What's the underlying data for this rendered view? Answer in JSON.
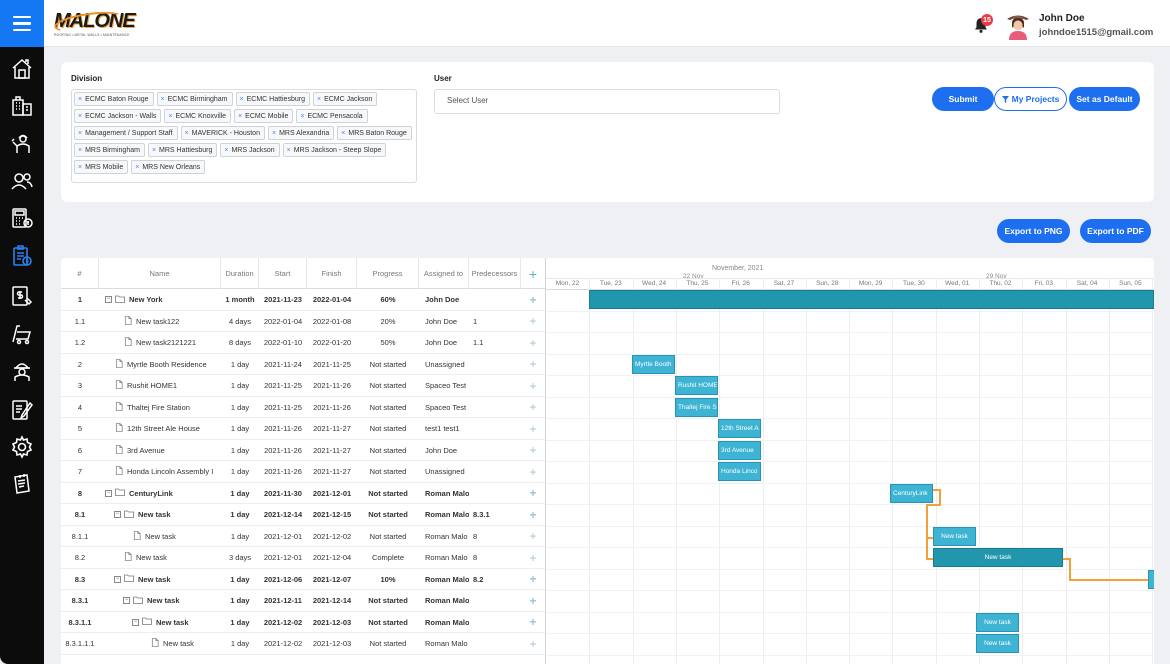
{
  "header": {
    "logo_text": "MALONE",
    "logo_subtitle": "ROOFING • METAL WALLS • MAINTENANCE",
    "notification_count": "15",
    "user_name": "John Doe",
    "user_email": "johndoe1515@gmail.com"
  },
  "sidebar": {
    "items": [
      {
        "name": "home-icon"
      },
      {
        "name": "building-icon"
      },
      {
        "name": "worker-icon"
      },
      {
        "name": "users-icon"
      },
      {
        "name": "calculator-icon"
      },
      {
        "name": "project-schedule-icon"
      },
      {
        "name": "invoice-icon"
      },
      {
        "name": "cart-icon"
      },
      {
        "name": "foreman-icon"
      },
      {
        "name": "estimate-icon"
      },
      {
        "name": "settings-icon"
      },
      {
        "name": "notes-icon"
      }
    ]
  },
  "filters": {
    "division_label": "Division",
    "user_label": "User",
    "user_placeholder": "Select User",
    "divisions": [
      "ECMC Baton Rouge",
      "ECMC Birmingham",
      "ECMC Hattiesburg",
      "ECMC Jackson",
      "ECMC Jackson - Walls",
      "ECMC Knoxville",
      "ECMC Mobile",
      "ECMC Pensacola",
      "Management / Support Staff",
      "MAVERICK - Houston",
      "MRS Alexandria",
      "MRS Baton Rouge",
      "MRS Birmingham",
      "MRS Hattiesburg",
      "MRS Jackson",
      "MRS Jackson - Steep Slope",
      "MRS Mobile",
      "MRS New Orleans"
    ],
    "chip_remove": "×",
    "submit_label": "Submit",
    "my_projects_label": "My Projects",
    "set_default_label": "Set as Default"
  },
  "export": {
    "png_label": "Export to PNG",
    "pdf_label": "Export to PDF"
  },
  "gantt": {
    "columns": {
      "id": "#",
      "name": "Name",
      "duration": "Duration",
      "start": "Start",
      "finish": "Finish",
      "progress": "Progress",
      "assigned": "Assigned to",
      "predecessors": "Predecessors",
      "add": "+"
    },
    "rows": [
      {
        "id": "1",
        "name": "New York",
        "duration": "1 month",
        "start": "2021-11-23",
        "finish": "2022-01-04",
        "progress": "60%",
        "assigned": "John Doe",
        "pred": "",
        "bold": true,
        "folder": true,
        "level": 0
      },
      {
        "id": "1.1",
        "name": "New task122",
        "duration": "4 days",
        "start": "2022-01-04",
        "finish": "2022-01-08",
        "progress": "20%",
        "assigned": "John Doe",
        "pred": "1",
        "bold": false,
        "folder": false,
        "level": 1
      },
      {
        "id": "1.2",
        "name": "New task2121221",
        "duration": "8 days",
        "start": "2022-01-10",
        "finish": "2022-01-20",
        "progress": "50%",
        "assigned": "John Doe",
        "pred": "1.1",
        "bold": false,
        "folder": false,
        "level": 1
      },
      {
        "id": "2",
        "name": "Myrtle Booth Residence",
        "duration": "1 day",
        "start": "2021-11-24",
        "finish": "2021-11-25",
        "progress": "Not started",
        "assigned": "Unassigned",
        "pred": "",
        "bold": false,
        "folder": false,
        "level": 0
      },
      {
        "id": "3",
        "name": "Rushit HOME1",
        "duration": "1 day",
        "start": "2021-11-25",
        "finish": "2021-11-26",
        "progress": "Not started",
        "assigned": "Spaceo Test",
        "pred": "",
        "bold": false,
        "folder": false,
        "level": 0
      },
      {
        "id": "4",
        "name": "Thaltej Fire Station",
        "duration": "1 day",
        "start": "2021-11-25",
        "finish": "2021-11-26",
        "progress": "Not started",
        "assigned": "Spaceo Test",
        "pred": "",
        "bold": false,
        "folder": false,
        "level": 0
      },
      {
        "id": "5",
        "name": "12th Street Ale House",
        "duration": "1 day",
        "start": "2021-11-26",
        "finish": "2021-11-27",
        "progress": "Not started",
        "assigned": "test1 test1",
        "pred": "",
        "bold": false,
        "folder": false,
        "level": 0
      },
      {
        "id": "6",
        "name": "3rd Avenue",
        "duration": "1 day",
        "start": "2021-11-26",
        "finish": "2021-11-27",
        "progress": "Not started",
        "assigned": "John Doe",
        "pred": "",
        "bold": false,
        "folder": false,
        "level": 0
      },
      {
        "id": "7",
        "name": "Honda Lincoln Assembly I",
        "duration": "1 day",
        "start": "2021-11-26",
        "finish": "2021-11-27",
        "progress": "Not started",
        "assigned": "Unassigned",
        "pred": "",
        "bold": false,
        "folder": false,
        "level": 0
      },
      {
        "id": "8",
        "name": "CenturyLink",
        "duration": "1 day",
        "start": "2021-11-30",
        "finish": "2021-12-01",
        "progress": "Not started",
        "assigned": "Roman Malo",
        "pred": "",
        "bold": true,
        "folder": true,
        "level": 0
      },
      {
        "id": "8.1",
        "name": "New task",
        "duration": "1 day",
        "start": "2021-12-14",
        "finish": "2021-12-15",
        "progress": "Not started",
        "assigned": "Roman Malo",
        "pred": "8.3.1",
        "bold": true,
        "folder": true,
        "level": 1
      },
      {
        "id": "8.1.1",
        "name": "New task",
        "duration": "1 day",
        "start": "2021-12-01",
        "finish": "2021-12-02",
        "progress": "Not started",
        "assigned": "Roman Malo",
        "pred": "8",
        "bold": false,
        "folder": false,
        "level": 2
      },
      {
        "id": "8.2",
        "name": "New task",
        "duration": "3 days",
        "start": "2021-12-01",
        "finish": "2021-12-04",
        "progress": "Complete",
        "assigned": "Roman Malo",
        "pred": "8",
        "bold": false,
        "folder": false,
        "level": 1
      },
      {
        "id": "8.3",
        "name": "New task",
        "duration": "1 day",
        "start": "2021-12-06",
        "finish": "2021-12-07",
        "progress": "10%",
        "assigned": "Roman Malo",
        "pred": "8.2",
        "bold": true,
        "folder": true,
        "level": 1
      },
      {
        "id": "8.3.1",
        "name": "New task",
        "duration": "1 day",
        "start": "2021-12-11",
        "finish": "2021-12-14",
        "progress": "Not started",
        "assigned": "Roman Malo",
        "pred": "",
        "bold": true,
        "folder": true,
        "level": 2
      },
      {
        "id": "8.3.1.1",
        "name": "New task",
        "duration": "1 day",
        "start": "2021-12-02",
        "finish": "2021-12-03",
        "progress": "Not started",
        "assigned": "Roman Malo",
        "pred": "",
        "bold": true,
        "folder": true,
        "level": 3
      },
      {
        "id": "8.3.1.1.1",
        "name": "New task",
        "duration": "1 day",
        "start": "2021-12-02",
        "finish": "2021-12-03",
        "progress": "Not started",
        "assigned": "Roman Malo",
        "pred": "",
        "bold": false,
        "folder": false,
        "level": 4
      }
    ],
    "timeline": {
      "month": "November, 2021",
      "weeks": [
        "22 Nov",
        "29 Nov"
      ],
      "days": [
        "Mon, 22",
        "Tue, 23",
        "Wed, 24",
        "Thu, 25",
        "Fri, 26",
        "Sat, 27",
        "Sun, 28",
        "Mon, 29",
        "Tue, 30",
        "Wed, 01",
        "Thu, 02",
        "Fri, 03",
        "Sat, 04",
        "Sun, 05"
      ]
    },
    "bars": [
      {
        "row": 0,
        "label": "",
        "type": "project"
      },
      {
        "row": 3,
        "label": "Myrtle Booth"
      },
      {
        "row": 4,
        "label": "Rushit HOME"
      },
      {
        "row": 5,
        "label": "Thaltej Fire S"
      },
      {
        "row": 6,
        "label": "12th Street A"
      },
      {
        "row": 7,
        "label": "3rd Avenue"
      },
      {
        "row": 8,
        "label": "Honda Linco"
      },
      {
        "row": 9,
        "label": "CenturyLink"
      },
      {
        "row": 11,
        "label": "New task"
      },
      {
        "row": 12,
        "label": "New task",
        "type": "project"
      },
      {
        "row": 13,
        "label": ""
      },
      {
        "row": 15,
        "label": "New task"
      },
      {
        "row": 16,
        "label": "New task"
      }
    ]
  }
}
